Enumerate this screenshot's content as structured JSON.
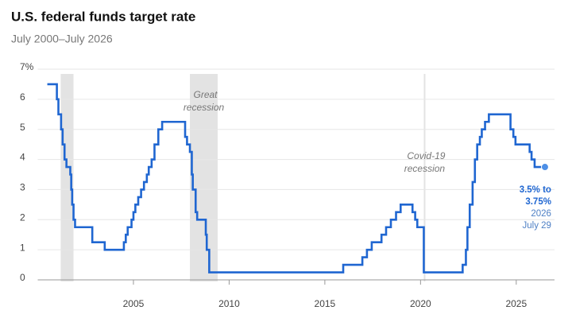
{
  "chart_data": {
    "type": "step",
    "title": "U.S. federal funds target rate",
    "subtitle": "July 2000–July 2026",
    "color": "#1f66d1",
    "grid": true,
    "xlim": [
      2000,
      2027
    ],
    "xticks": [
      2005,
      2010,
      2015,
      2020,
      2025
    ],
    "ylim": [
      0,
      7
    ],
    "yticks": [
      0,
      1,
      2,
      3,
      4,
      5,
      6,
      {
        "value": 7,
        "label": "7%"
      }
    ],
    "shaded_regions": [
      {
        "start": 2001.2,
        "end": 2001.87,
        "label_lines": []
      },
      {
        "start": 2007.95,
        "end": 2009.4,
        "label_lines": [
          "Great",
          "recession"
        ]
      },
      {
        "start": 2020.17,
        "end": 2020.25,
        "label_lines": [
          "Covid-19",
          "recession"
        ]
      }
    ],
    "x": [
      2000.5,
      2001.0,
      2001.08,
      2001.22,
      2001.3,
      2001.4,
      2001.5,
      2001.7,
      2001.75,
      2001.8,
      2001.87,
      2001.95,
      2002.85,
      2003.5,
      2004.5,
      2004.6,
      2004.7,
      2004.9,
      2005.0,
      2005.1,
      2005.25,
      2005.4,
      2005.55,
      2005.7,
      2005.8,
      2005.95,
      2006.1,
      2006.3,
      2006.5,
      2007.7,
      2007.8,
      2007.95,
      2008.05,
      2008.1,
      2008.25,
      2008.33,
      2008.78,
      2008.83,
      2008.96,
      2015.96,
      2016.96,
      2017.2,
      2017.45,
      2017.96,
      2018.2,
      2018.45,
      2018.72,
      2018.96,
      2019.58,
      2019.72,
      2019.83,
      2020.17,
      2022.2,
      2022.37,
      2022.45,
      2022.57,
      2022.72,
      2022.84,
      2022.96,
      2023.1,
      2023.2,
      2023.37,
      2023.57,
      2024.7,
      2024.85,
      2024.96,
      2025.7,
      2025.8,
      2025.96,
      2026.5
    ],
    "values": [
      6.5,
      6.0,
      5.5,
      5.0,
      4.5,
      4.0,
      3.75,
      3.5,
      3.0,
      2.5,
      2.0,
      1.75,
      1.25,
      1.0,
      1.25,
      1.5,
      1.75,
      2.0,
      2.25,
      2.5,
      2.75,
      3.0,
      3.25,
      3.5,
      3.75,
      4.0,
      4.5,
      5.0,
      5.25,
      4.75,
      4.5,
      4.25,
      3.5,
      3.0,
      2.25,
      2.0,
      1.5,
      1.0,
      0.25,
      0.5,
      0.75,
      1.0,
      1.25,
      1.5,
      1.75,
      2.0,
      2.25,
      2.5,
      2.25,
      2.0,
      1.75,
      0.25,
      0.5,
      1.0,
      1.75,
      2.5,
      3.25,
      4.0,
      4.5,
      4.75,
      5.0,
      5.25,
      5.5,
      5.0,
      4.75,
      4.5,
      4.25,
      4.0,
      3.75,
      3.75
    ],
    "end_annotation_lines": [
      "3.5% to",
      "3.75%",
      "2026",
      "July 29"
    ]
  }
}
